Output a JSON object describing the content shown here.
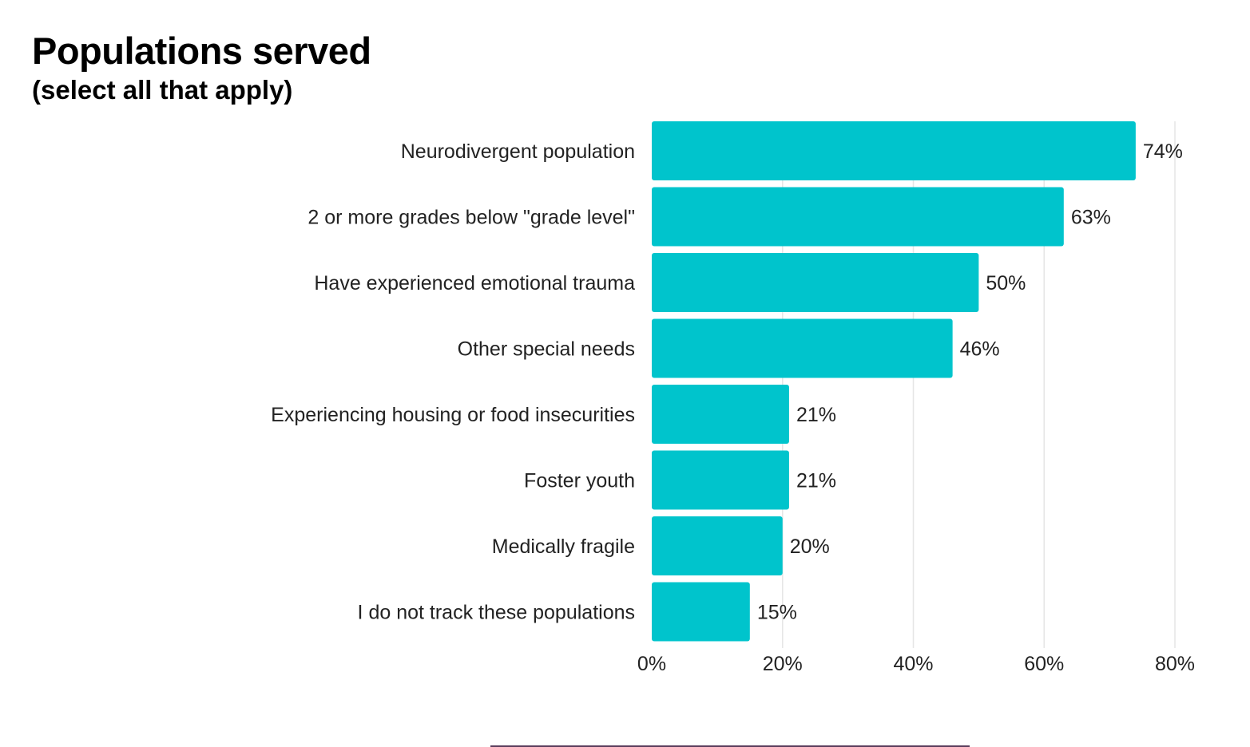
{
  "chart_data": {
    "type": "bar",
    "orientation": "horizontal",
    "title": "Populations served",
    "subtitle": "(select all that apply)",
    "categories": [
      "Neurodivergent population",
      "2 or more grades below \"grade level\"",
      "Have experienced emotional trauma",
      "Other special needs",
      "Experiencing housing or food insecurities",
      "Foster youth",
      "Medically fragile",
      "I do not track these populations"
    ],
    "values": [
      74,
      63,
      50,
      46,
      21,
      21,
      20,
      15
    ],
    "data_labels": [
      "74%",
      "63%",
      "50%",
      "46%",
      "21%",
      "21%",
      "20%",
      "15%"
    ],
    "xlim": [
      0,
      80
    ],
    "xticks": [
      0,
      20,
      40,
      60,
      80
    ],
    "xtick_labels": [
      "0%",
      "20%",
      "40%",
      "60%",
      "80%"
    ],
    "grid": "vertical",
    "bar_color": "#00C4CC"
  }
}
